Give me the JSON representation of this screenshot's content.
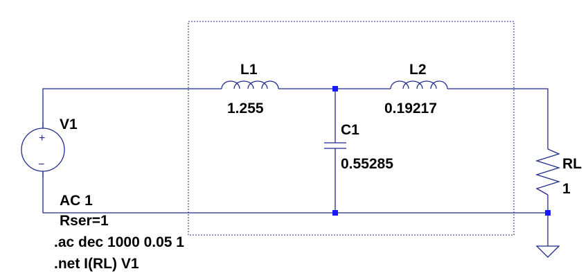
{
  "components": {
    "V1": {
      "name": "V1",
      "value": "AC 1",
      "param": "Rser=1"
    },
    "L1": {
      "name": "L1",
      "value": "1.255"
    },
    "L2": {
      "name": "L2",
      "value": "0.19217"
    },
    "C1": {
      "name": "C1",
      "value": "0.55285"
    },
    "RL": {
      "name": "RL",
      "value": "1"
    }
  },
  "directives": {
    "ac": ".ac dec 1000 0.05 1",
    "net": ".net I(RL) V1"
  },
  "source_symbols": {
    "plus": "+",
    "minus": "−"
  },
  "colors": {
    "wire": "#1f2a8c",
    "node": "#1a1aff",
    "text": "#000000"
  }
}
